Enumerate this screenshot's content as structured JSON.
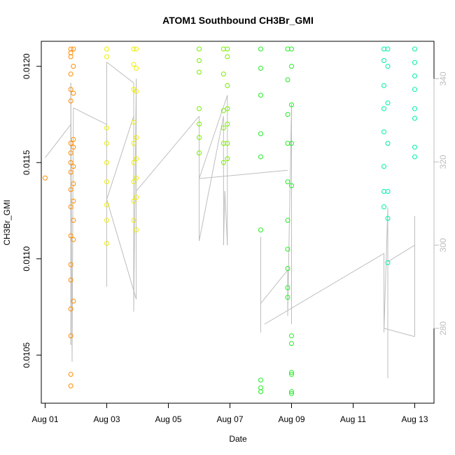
{
  "chart_data": {
    "type": "scatter",
    "title": "ATOM1 Southbound CH3Br_GMI",
    "xlabel": "Date",
    "ylabel": "CH3Br_GMI",
    "x_axis": {
      "type": "date",
      "range": [
        "2016-07-31T21:00",
        "2016-08-13T15:00"
      ],
      "ticks": [
        {
          "value": "2016-08-01",
          "label": "Aug 01"
        },
        {
          "value": "2016-08-03",
          "label": "Aug 03"
        },
        {
          "value": "2016-08-05",
          "label": "Aug 05"
        },
        {
          "value": "2016-08-07",
          "label": "Aug 07"
        },
        {
          "value": "2016-08-09",
          "label": "Aug 09"
        },
        {
          "value": "2016-08-11",
          "label": "Aug 11"
        },
        {
          "value": "2016-08-13",
          "label": "Aug 13"
        }
      ]
    },
    "y_axis": {
      "range": [
        0.01025,
        0.01213
      ],
      "ticks": [
        {
          "value": 0.0105,
          "label": "0.0105"
        },
        {
          "value": 0.011,
          "label": "0.0110"
        },
        {
          "value": 0.0115,
          "label": "0.0115"
        },
        {
          "value": 0.012,
          "label": "0.0120"
        }
      ]
    },
    "y2_axis": {
      "color": "#bdbdbd",
      "range": [
        262,
        349
      ],
      "ticks": [
        {
          "value": 280,
          "label": "280"
        },
        {
          "value": 300,
          "label": "300"
        },
        {
          "value": 320,
          "label": "320"
        },
        {
          "value": 340,
          "label": "340"
        }
      ]
    },
    "grid": false,
    "marker": "open-circle",
    "line_color": "#bebebe",
    "series": [
      {
        "color": "#ff8c00",
        "points": [
          [
            "2016-08-01T00:00",
            0.01142
          ],
          [
            "2016-08-01T20:00",
            0.01209
          ],
          [
            "2016-08-01T20:00",
            0.01207
          ],
          [
            "2016-08-01T20:00",
            0.01205
          ],
          [
            "2016-08-01T20:00",
            0.01196
          ],
          [
            "2016-08-01T20:00",
            0.01188
          ],
          [
            "2016-08-01T20:00",
            0.01182
          ],
          [
            "2016-08-01T20:00",
            0.0116
          ],
          [
            "2016-08-01T20:00",
            0.01155
          ],
          [
            "2016-08-01T20:00",
            0.0115
          ],
          [
            "2016-08-01T20:00",
            0.01145
          ],
          [
            "2016-08-01T20:00",
            0.01136
          ],
          [
            "2016-08-01T20:00",
            0.01127
          ],
          [
            "2016-08-01T20:00",
            0.01112
          ],
          [
            "2016-08-01T20:00",
            0.01097
          ],
          [
            "2016-08-01T20:00",
            0.01089
          ],
          [
            "2016-08-01T20:00",
            0.01074
          ],
          [
            "2016-08-01T20:00",
            0.0106
          ],
          [
            "2016-08-01T20:00",
            0.0104
          ],
          [
            "2016-08-01T20:00",
            0.01034
          ],
          [
            "2016-08-01T22:00",
            0.01209
          ],
          [
            "2016-08-01T22:00",
            0.012
          ],
          [
            "2016-08-01T22:00",
            0.01186
          ],
          [
            "2016-08-01T22:00",
            0.01162
          ],
          [
            "2016-08-01T22:00",
            0.01158
          ],
          [
            "2016-08-01T22:00",
            0.01148
          ],
          [
            "2016-08-01T22:00",
            0.01139
          ],
          [
            "2016-08-01T22:00",
            0.0113
          ],
          [
            "2016-08-01T22:00",
            0.0112
          ],
          [
            "2016-08-01T22:00",
            0.0111
          ],
          [
            "2016-08-01T22:00",
            0.01078
          ]
        ]
      },
      {
        "color": "#eeee00",
        "points": [
          [
            "2016-08-03T00:00",
            0.01209
          ],
          [
            "2016-08-03T00:00",
            0.01205
          ],
          [
            "2016-08-03T00:00",
            0.01168
          ],
          [
            "2016-08-03T00:00",
            0.0116
          ],
          [
            "2016-08-03T00:00",
            0.0115
          ],
          [
            "2016-08-03T00:00",
            0.0114
          ],
          [
            "2016-08-03T00:00",
            0.01128
          ],
          [
            "2016-08-03T00:00",
            0.0112
          ],
          [
            "2016-08-03T00:00",
            0.01108
          ],
          [
            "2016-08-03T21:00",
            0.01209
          ],
          [
            "2016-08-03T21:00",
            0.01201
          ],
          [
            "2016-08-03T21:00",
            0.01188
          ],
          [
            "2016-08-03T21:00",
            0.01171
          ],
          [
            "2016-08-03T21:00",
            0.0116
          ],
          [
            "2016-08-03T21:00",
            0.0115
          ],
          [
            "2016-08-03T21:00",
            0.0114
          ],
          [
            "2016-08-03T21:00",
            0.0113
          ],
          [
            "2016-08-03T21:00",
            0.0112
          ],
          [
            "2016-08-03T23:00",
            0.01209
          ],
          [
            "2016-08-03T23:00",
            0.01199
          ],
          [
            "2016-08-03T23:00",
            0.01187
          ],
          [
            "2016-08-03T23:00",
            0.01163
          ],
          [
            "2016-08-03T23:00",
            0.01152
          ],
          [
            "2016-08-03T23:00",
            0.01142
          ],
          [
            "2016-08-03T23:00",
            0.01132
          ],
          [
            "2016-08-03T23:00",
            0.01115
          ]
        ]
      },
      {
        "color": "#77ee00",
        "points": [
          [
            "2016-08-06T00:00",
            0.01209
          ],
          [
            "2016-08-06T00:00",
            0.01203
          ],
          [
            "2016-08-06T00:00",
            0.01197
          ],
          [
            "2016-08-06T00:00",
            0.01178
          ],
          [
            "2016-08-06T00:00",
            0.0117
          ],
          [
            "2016-08-06T00:00",
            0.01163
          ],
          [
            "2016-08-06T00:00",
            0.01155
          ],
          [
            "2016-08-06T19:00",
            0.01209
          ],
          [
            "2016-08-06T19:00",
            0.01196
          ],
          [
            "2016-08-06T19:00",
            0.01177
          ],
          [
            "2016-08-06T19:00",
            0.01168
          ],
          [
            "2016-08-06T19:00",
            0.0116
          ],
          [
            "2016-08-06T19:00",
            0.0115
          ],
          [
            "2016-08-06T22:00",
            0.01209
          ],
          [
            "2016-08-06T22:00",
            0.01205
          ],
          [
            "2016-08-06T22:00",
            0.0119
          ],
          [
            "2016-08-06T22:00",
            0.01178
          ],
          [
            "2016-08-06T22:00",
            0.0117
          ],
          [
            "2016-08-06T22:00",
            0.0116
          ],
          [
            "2016-08-06T22:00",
            0.01152
          ]
        ]
      },
      {
        "color": "#22ee22",
        "points": [
          [
            "2016-08-08T00:00",
            0.01209
          ],
          [
            "2016-08-08T00:00",
            0.01199
          ],
          [
            "2016-08-08T00:00",
            0.01185
          ],
          [
            "2016-08-08T00:00",
            0.01165
          ],
          [
            "2016-08-08T00:00",
            0.01153
          ],
          [
            "2016-08-08T00:00",
            0.01115
          ],
          [
            "2016-08-08T00:00",
            0.01037
          ],
          [
            "2016-08-08T00:00",
            0.01033
          ],
          [
            "2016-08-08T00:00",
            0.01031
          ],
          [
            "2016-08-08T21:00",
            0.01209
          ],
          [
            "2016-08-08T21:00",
            0.01193
          ],
          [
            "2016-08-08T21:00",
            0.01175
          ],
          [
            "2016-08-08T21:00",
            0.0116
          ],
          [
            "2016-08-08T21:00",
            0.0114
          ],
          [
            "2016-08-08T21:00",
            0.0112
          ],
          [
            "2016-08-08T21:00",
            0.01105
          ],
          [
            "2016-08-08T21:00",
            0.01095
          ],
          [
            "2016-08-08T21:00",
            0.01085
          ],
          [
            "2016-08-08T21:00",
            0.0108
          ],
          [
            "2016-08-09T00:00",
            0.01209
          ],
          [
            "2016-08-09T00:00",
            0.012
          ],
          [
            "2016-08-09T00:00",
            0.0118
          ],
          [
            "2016-08-09T00:00",
            0.0116
          ],
          [
            "2016-08-09T00:00",
            0.01138
          ],
          [
            "2016-08-09T00:00",
            0.0106
          ],
          [
            "2016-08-09T00:00",
            0.01056
          ],
          [
            "2016-08-09T00:00",
            0.01041
          ],
          [
            "2016-08-09T00:00",
            0.0104
          ],
          [
            "2016-08-09T00:00",
            0.01031
          ],
          [
            "2016-08-09T00:00",
            0.0103
          ]
        ]
      },
      {
        "color": "#00eeaa",
        "points": [
          [
            "2016-08-12T00:00",
            0.01209
          ],
          [
            "2016-08-12T00:00",
            0.01203
          ],
          [
            "2016-08-12T00:00",
            0.0119
          ],
          [
            "2016-08-12T00:00",
            0.01178
          ],
          [
            "2016-08-12T00:00",
            0.01166
          ],
          [
            "2016-08-12T00:00",
            0.01148
          ],
          [
            "2016-08-12T00:00",
            0.01135
          ],
          [
            "2016-08-12T00:00",
            0.01127
          ],
          [
            "2016-08-12T03:00",
            0.01209
          ],
          [
            "2016-08-12T03:00",
            0.012
          ],
          [
            "2016-08-12T03:00",
            0.01181
          ],
          [
            "2016-08-12T03:00",
            0.0116
          ],
          [
            "2016-08-12T03:00",
            0.01135
          ],
          [
            "2016-08-12T03:00",
            0.01121
          ],
          [
            "2016-08-12T03:00",
            0.01098
          ],
          [
            "2016-08-13T00:00",
            0.01209
          ],
          [
            "2016-08-13T00:00",
            0.01202
          ],
          [
            "2016-08-13T00:00",
            0.01195
          ],
          [
            "2016-08-13T00:00",
            0.01188
          ],
          [
            "2016-08-13T00:00",
            0.01178
          ],
          [
            "2016-08-13T00:00",
            0.01173
          ],
          [
            "2016-08-13T00:00",
            0.01158
          ],
          [
            "2016-08-13T00:00",
            0.01153
          ]
        ]
      }
    ],
    "line_segments": [
      [
        [
          "2016-08-01T00:00",
          321
        ],
        [
          "2016-08-01T20:00",
          329
        ]
      ],
      [
        [
          "2016-08-01T20:00",
          329
        ],
        [
          "2016-08-01T20:00",
          276
        ]
      ],
      [
        [
          "2016-08-01T20:00",
          276
        ],
        [
          "2016-08-01T20:00",
          339
        ]
      ],
      [
        [
          "2016-08-01T20:00",
          339
        ],
        [
          "2016-08-01T21:00",
          272
        ]
      ],
      [
        [
          "2016-08-01T21:00",
          272
        ],
        [
          "2016-08-01T22:00",
          333
        ]
      ],
      [
        [
          "2016-08-01T22:00",
          333
        ],
        [
          "2016-08-03T00:00",
          329
        ]
      ],
      [
        [
          "2016-08-03T00:00",
          329
        ],
        [
          "2016-08-03T00:00",
          290
        ]
      ],
      [
        [
          "2016-08-03T00:00",
          290
        ],
        [
          "2016-08-03T00:00",
          344
        ]
      ],
      [
        [
          "2016-08-03T00:00",
          344
        ],
        [
          "2016-08-03T21:00",
          339
        ]
      ],
      [
        [
          "2016-08-03T21:00",
          339
        ],
        [
          "2016-08-03T21:00",
          284
        ]
      ],
      [
        [
          "2016-08-03T21:00",
          284
        ],
        [
          "2016-08-03T23:00",
          340
        ]
      ],
      [
        [
          "2016-08-03T23:00",
          340
        ],
        [
          "2016-08-03T23:00",
          287
        ]
      ],
      [
        [
          "2016-08-03T23:00",
          287
        ],
        [
          "2016-08-03T00:00",
          311
        ]
      ],
      [
        [
          "2016-08-03T00:00",
          311
        ],
        [
          "2016-08-03T21:00",
          331
        ]
      ],
      [
        [
          "2016-08-03T23:00",
          313
        ],
        [
          "2016-08-06T00:00",
          331
        ]
      ],
      [
        [
          "2016-08-06T00:00",
          331
        ],
        [
          "2016-08-06T00:00",
          301
        ]
      ],
      [
        [
          "2016-08-06T00:00",
          301
        ],
        [
          "2016-08-06T19:00",
          331
        ]
      ],
      [
        [
          "2016-08-06T19:00",
          331
        ],
        [
          "2016-08-06T19:00",
          300
        ]
      ],
      [
        [
          "2016-08-06T19:00",
          300
        ],
        [
          "2016-08-06T20:00",
          313
        ]
      ],
      [
        [
          "2016-08-06T20:00",
          313
        ],
        [
          "2016-08-06T22:00",
          300
        ]
      ],
      [
        [
          "2016-08-06T22:00",
          300
        ],
        [
          "2016-08-06T22:00",
          336
        ]
      ],
      [
        [
          "2016-08-06T22:00",
          336
        ],
        [
          "2016-08-06T00:00",
          316
        ]
      ],
      [
        [
          "2016-08-06T00:00",
          316
        ],
        [
          "2016-08-08T21:00",
          318
        ]
      ],
      [
        [
          "2016-08-08T00:00",
          279
        ],
        [
          "2016-08-08T00:00",
          302
        ]
      ],
      [
        [
          "2016-08-08T00:00",
          286
        ],
        [
          "2016-08-08T21:00",
          294
        ]
      ],
      [
        [
          "2016-08-08T21:00",
          294
        ],
        [
          "2016-08-08T21:00",
          283
        ]
      ],
      [
        [
          "2016-08-08T21:00",
          283
        ],
        [
          "2016-08-09T00:00",
          334
        ]
      ],
      [
        [
          "2016-08-09T00:00",
          334
        ],
        [
          "2016-08-09T00:00",
          281
        ]
      ],
      [
        [
          "2016-08-08T03:00",
          281
        ],
        [
          "2016-08-12T00:00",
          298
        ]
      ],
      [
        [
          "2016-08-12T00:00",
          298
        ],
        [
          "2016-08-12T00:00",
          279
        ]
      ],
      [
        [
          "2016-08-12T00:00",
          279
        ],
        [
          "2016-08-12T03:00",
          309
        ]
      ],
      [
        [
          "2016-08-12T03:00",
          309
        ],
        [
          "2016-08-12T03:00",
          268
        ]
      ],
      [
        [
          "2016-08-12T03:00",
          268
        ],
        [
          "2016-08-12T03:00",
          296
        ]
      ],
      [
        [
          "2016-08-12T03:00",
          296
        ],
        [
          "2016-08-13T00:00",
          300
        ]
      ],
      [
        [
          "2016-08-13T00:00",
          300
        ],
        [
          "2016-08-13T00:00",
          278
        ]
      ],
      [
        [
          "2016-08-13T00:00",
          278
        ],
        [
          "2016-08-12T00:00",
          280
        ]
      ],
      [
        [
          "2016-08-13T00:00",
          282
        ],
        [
          "2016-08-13T00:00",
          307
        ]
      ]
    ]
  }
}
